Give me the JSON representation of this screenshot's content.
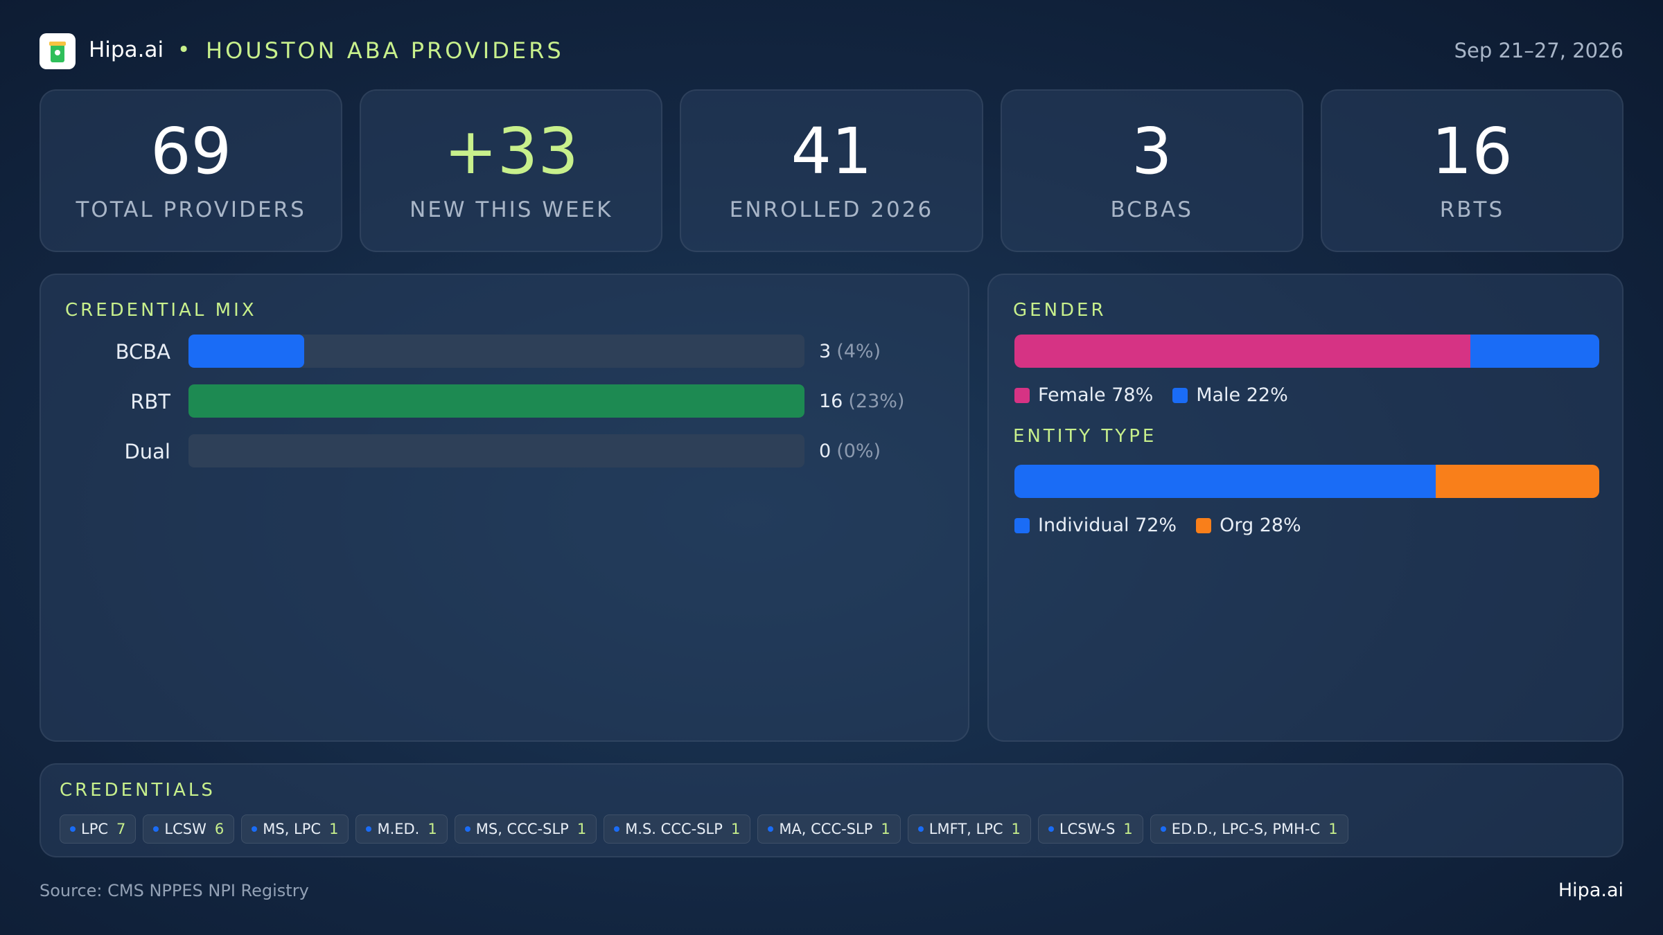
{
  "header": {
    "brand": "Hipa.ai",
    "separator": "•",
    "title": "HOUSTON ABA PROVIDERS",
    "date": "Sep 21–27, 2026"
  },
  "kpis": [
    {
      "value": "69",
      "label": "TOTAL PROVIDERS"
    },
    {
      "value": "+33",
      "label": "NEW THIS WEEK",
      "accent": true
    },
    {
      "value": "41",
      "label": "ENROLLED 2026"
    },
    {
      "value": "3",
      "label": "BCBAS"
    },
    {
      "value": "16",
      "label": "RBTS"
    }
  ],
  "credential_mix": {
    "title": "CREDENTIAL MIX",
    "xlim": [
      0,
      16
    ],
    "rows": [
      {
        "label": "BCBA",
        "value": 3,
        "share_label": "(4%)",
        "color": "#1a6cf6"
      },
      {
        "label": "RBT",
        "value": 16,
        "share_label": "(23%)",
        "color": "#1d8a52"
      },
      {
        "label": "Dual",
        "value": 0,
        "share_label": "(0%)",
        "color": "#1a6cf6"
      }
    ]
  },
  "gender": {
    "title": "GENDER",
    "segments": [
      {
        "label": "Female 78%",
        "value": 78,
        "color": "#d63384"
      },
      {
        "label": "Male 22%",
        "value": 22,
        "color": "#1a6cf6"
      }
    ]
  },
  "entity_type": {
    "title": "ENTITY TYPE",
    "segments": [
      {
        "label": "Individual 72%",
        "value": 72,
        "color": "#1a6cf6"
      },
      {
        "label": "Org 28%",
        "value": 28,
        "color": "#f97f1a"
      }
    ]
  },
  "credentials": {
    "title": "CREDENTIALS",
    "items": [
      {
        "name": "LPC",
        "count": 7
      },
      {
        "name": "LCSW",
        "count": 6
      },
      {
        "name": "MS, LPC",
        "count": 1
      },
      {
        "name": "M.ED.",
        "count": 1
      },
      {
        "name": "MS, CCC-SLP",
        "count": 1
      },
      {
        "name": "M.S. CCC-SLP",
        "count": 1
      },
      {
        "name": "MA, CCC-SLP",
        "count": 1
      },
      {
        "name": "LMFT, LPC",
        "count": 1
      },
      {
        "name": "LCSW-S",
        "count": 1
      },
      {
        "name": "ED.D., LPC-S, PMH-C",
        "count": 1
      }
    ]
  },
  "footer": {
    "source": "Source: CMS NPPES NPI Registry",
    "brand": "Hipa.ai"
  }
}
